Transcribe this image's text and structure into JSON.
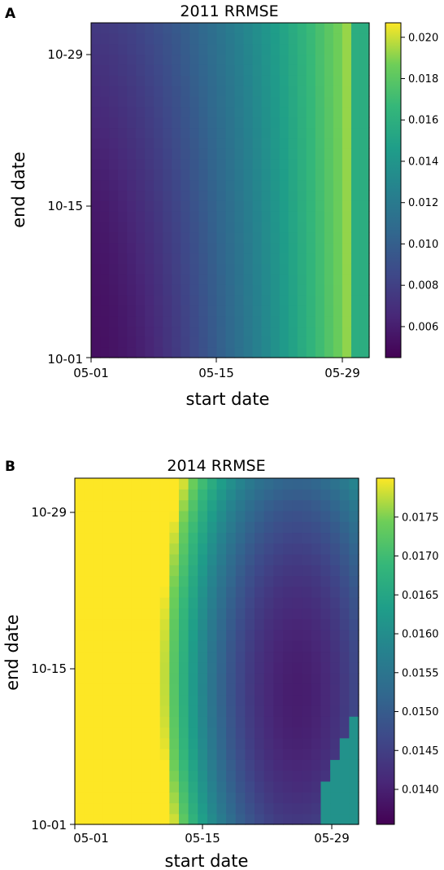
{
  "chart_data": [
    {
      "type": "heatmap",
      "panel": "A",
      "title": "2011 RRMSE",
      "xlabel": "start date",
      "ylabel": "end date",
      "xticks": [
        "05-01",
        "05-15",
        "05-29"
      ],
      "yticks": [
        "10-01",
        "10-15",
        "10-29"
      ],
      "x_day_range": [
        "05-01",
        "05-31"
      ],
      "y_day_range": [
        "10-01",
        "11-01"
      ],
      "colormap": "viridis",
      "colorbar": {
        "min": 0.0045,
        "max": 0.0207,
        "ticks": [
          "0.006",
          "0.008",
          "0.010",
          "0.012",
          "0.014",
          "0.016",
          "0.018",
          "0.020"
        ],
        "tick_values": [
          0.006,
          0.008,
          0.01,
          0.012,
          0.014,
          0.016,
          0.018,
          0.02
        ]
      },
      "grid": false,
      "surface": {
        "min_region": "lower-left (start ~05-06, end ~10-04)",
        "max_region": "right edge (start ~05-30), top",
        "last_column_value": 0.0158
      }
    },
    {
      "type": "heatmap",
      "panel": "B",
      "title": "2014 RRMSE",
      "xlabel": "start date",
      "ylabel": "end date",
      "xticks": [
        "05-01",
        "05-15",
        "05-29"
      ],
      "yticks": [
        "10-01",
        "10-15",
        "10-29"
      ],
      "x_day_range": [
        "05-01",
        "05-30"
      ],
      "y_day_range": [
        "10-01",
        "11-01"
      ],
      "colormap": "viridis",
      "colorbar": {
        "min": 0.01355,
        "max": 0.018,
        "ticks": [
          "0.0140",
          "0.0145",
          "0.0150",
          "0.0155",
          "0.0160",
          "0.0165",
          "0.0170",
          "0.0175"
        ],
        "tick_values": [
          0.014,
          0.0145,
          0.015,
          0.0155,
          0.016,
          0.0165,
          0.017,
          0.0175
        ]
      },
      "grid": false,
      "surface": {
        "max_region": "lower-left (start 05-01, end 10-01)",
        "min_region": "center-right (start ~05-23, end ~10-12)",
        "lower_right_patch_value": 0.0161
      }
    }
  ]
}
